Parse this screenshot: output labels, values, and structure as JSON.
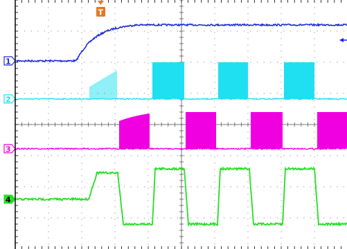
{
  "screen": {
    "background": "#ffffff",
    "grid_color": "#8a8a8a",
    "border_color": "#000000",
    "divisions": {
      "horizontal": 10,
      "vertical": 8
    }
  },
  "trigger": {
    "label": "T",
    "color": "#e87722"
  },
  "trigger_level_arrow": {
    "color": "#1a1aff"
  },
  "channels": [
    {
      "id": "1",
      "label": "1",
      "color": "#1f2bd6"
    },
    {
      "id": "2",
      "label": "2",
      "color": "#1fe0f0"
    },
    {
      "id": "3",
      "label": "3",
      "color": "#f000e0"
    },
    {
      "id": "4",
      "label": "4",
      "color": "#22e022"
    }
  ]
}
